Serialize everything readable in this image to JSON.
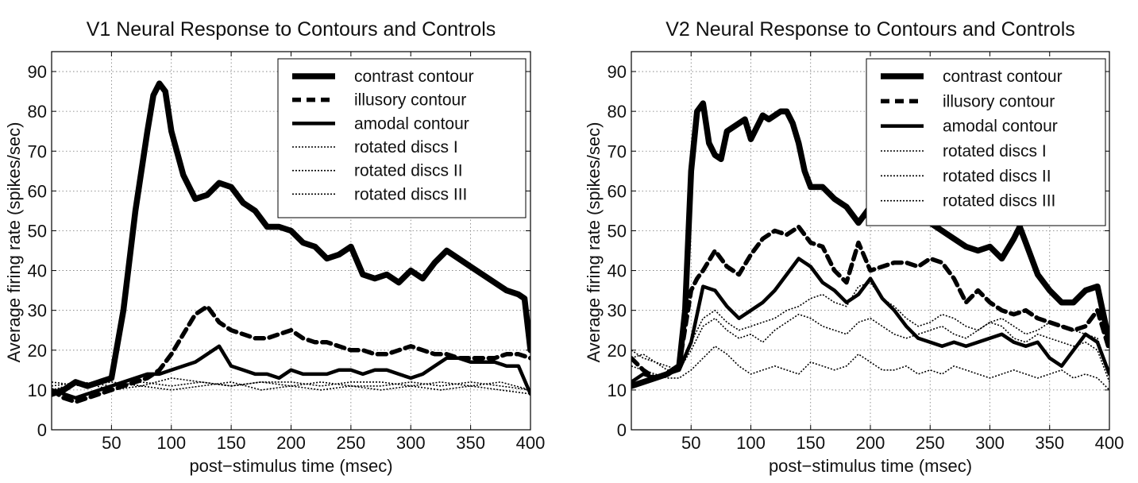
{
  "chart_data": [
    {
      "type": "line",
      "title": "V1 Neural Response to Contours and Controls",
      "xlabel": "post−stimulus time (msec)",
      "ylabel": "Average firing rate (spikes/sec)",
      "xlim": [
        0,
        400
      ],
      "ylim": [
        0,
        95
      ],
      "xticks": [
        50,
        100,
        150,
        200,
        250,
        300,
        350,
        400
      ],
      "yticks": [
        0,
        10,
        20,
        30,
        40,
        50,
        60,
        70,
        80,
        90
      ],
      "grid": true,
      "legend_position": "top-right",
      "series": [
        {
          "name": "contrast contour",
          "style": "thick-solid",
          "x": [
            0,
            10,
            20,
            30,
            40,
            50,
            60,
            70,
            80,
            85,
            90,
            95,
            100,
            110,
            120,
            130,
            140,
            150,
            160,
            170,
            180,
            190,
            200,
            210,
            220,
            230,
            240,
            250,
            260,
            270,
            280,
            290,
            300,
            310,
            320,
            330,
            340,
            350,
            360,
            370,
            380,
            390,
            395,
            400
          ],
          "y": [
            9,
            10,
            12,
            11,
            12,
            13,
            30,
            55,
            75,
            84,
            87,
            85,
            75,
            64,
            58,
            59,
            62,
            61,
            57,
            55,
            51,
            51,
            50,
            47,
            46,
            43,
            44,
            46,
            39,
            38,
            39,
            37,
            40,
            38,
            42,
            45,
            43,
            41,
            39,
            37,
            35,
            34,
            33,
            20
          ]
        },
        {
          "name": "illusory contour",
          "style": "thick-dash",
          "x": [
            0,
            10,
            20,
            30,
            40,
            50,
            60,
            70,
            80,
            90,
            100,
            110,
            120,
            130,
            140,
            150,
            160,
            170,
            180,
            190,
            200,
            210,
            220,
            230,
            240,
            250,
            260,
            270,
            280,
            290,
            300,
            310,
            320,
            330,
            340,
            350,
            360,
            370,
            380,
            390,
            400
          ],
          "y": [
            10,
            8,
            7,
            8,
            9,
            10,
            11,
            12,
            13,
            15,
            19,
            24,
            29,
            31,
            27,
            25,
            24,
            23,
            23,
            24,
            25,
            23,
            22,
            22,
            21,
            20,
            20,
            19,
            19,
            20,
            21,
            20,
            19,
            19,
            18,
            18,
            18,
            18,
            19,
            19,
            18
          ]
        },
        {
          "name": "amodal contour",
          "style": "medium-solid",
          "x": [
            0,
            10,
            20,
            30,
            40,
            50,
            60,
            70,
            80,
            90,
            100,
            110,
            120,
            130,
            140,
            150,
            160,
            170,
            180,
            190,
            200,
            210,
            220,
            230,
            240,
            250,
            260,
            270,
            280,
            290,
            300,
            310,
            320,
            330,
            340,
            350,
            360,
            370,
            380,
            390,
            400
          ],
          "y": [
            10,
            9,
            8,
            9,
            10,
            11,
            12,
            13,
            14,
            14,
            15,
            16,
            17,
            19,
            21,
            16,
            15,
            14,
            14,
            13,
            15,
            14,
            14,
            14,
            15,
            15,
            14,
            15,
            15,
            14,
            13,
            14,
            16,
            18,
            18,
            17,
            17,
            17,
            16,
            16,
            9
          ]
        },
        {
          "name": "rotated discs I",
          "style": "dotted",
          "x": [
            0,
            25,
            50,
            75,
            100,
            125,
            150,
            175,
            200,
            225,
            250,
            275,
            300,
            325,
            350,
            375,
            400
          ],
          "y": [
            11,
            12,
            11,
            12,
            11,
            12,
            11,
            12,
            11,
            12,
            11,
            11,
            12,
            11,
            12,
            11,
            10
          ]
        },
        {
          "name": "rotated discs II",
          "style": "dotted",
          "x": [
            0,
            25,
            50,
            75,
            100,
            125,
            150,
            175,
            200,
            225,
            250,
            275,
            300,
            325,
            350,
            375,
            400
          ],
          "y": [
            12,
            11,
            12,
            11,
            13,
            12,
            11,
            12,
            12,
            11,
            12,
            12,
            11,
            12,
            11,
            12,
            10
          ]
        },
        {
          "name": "rotated discs III",
          "style": "dotted",
          "x": [
            0,
            25,
            50,
            75,
            100,
            125,
            150,
            175,
            200,
            225,
            250,
            275,
            300,
            325,
            350,
            375,
            400
          ],
          "y": [
            10,
            12,
            10,
            11,
            10,
            11,
            12,
            10,
            11,
            10,
            11,
            10,
            11,
            10,
            11,
            10,
            9
          ]
        }
      ]
    },
    {
      "type": "line",
      "title": "V2 Neural Response to Contours and Controls",
      "xlabel": "post−stimulus time (msec)",
      "ylabel": "Average firing rate (spikes/sec)",
      "xlim": [
        0,
        400
      ],
      "ylim": [
        0,
        95
      ],
      "xticks": [
        50,
        100,
        150,
        200,
        250,
        300,
        350,
        400
      ],
      "yticks": [
        0,
        10,
        20,
        30,
        40,
        50,
        60,
        70,
        80,
        90
      ],
      "grid": true,
      "legend_position": "top-right",
      "series": [
        {
          "name": "contrast contour",
          "style": "thick-solid",
          "x": [
            0,
            10,
            20,
            30,
            40,
            45,
            50,
            55,
            60,
            65,
            70,
            75,
            80,
            90,
            95,
            100,
            105,
            110,
            115,
            120,
            125,
            130,
            135,
            140,
            145,
            150,
            160,
            170,
            180,
            190,
            200,
            210,
            220,
            230,
            240,
            250,
            260,
            270,
            280,
            290,
            300,
            310,
            320,
            325,
            330,
            340,
            350,
            360,
            370,
            380,
            390,
            400
          ],
          "y": [
            11,
            12,
            13,
            14,
            16,
            30,
            65,
            80,
            82,
            72,
            69,
            68,
            75,
            77,
            78,
            73,
            76,
            79,
            78,
            79,
            80,
            80,
            77,
            72,
            65,
            61,
            61,
            58,
            56,
            52,
            56,
            58,
            57,
            56,
            55,
            52,
            50,
            48,
            46,
            45,
            46,
            43,
            48,
            51,
            47,
            39,
            35,
            32,
            32,
            35,
            36,
            22
          ]
        },
        {
          "name": "illusory contour",
          "style": "thick-dash",
          "x": [
            0,
            10,
            20,
            30,
            40,
            50,
            55,
            60,
            70,
            80,
            90,
            100,
            110,
            120,
            130,
            140,
            150,
            160,
            170,
            180,
            190,
            200,
            210,
            220,
            230,
            240,
            250,
            260,
            270,
            280,
            290,
            300,
            310,
            320,
            330,
            340,
            350,
            360,
            370,
            380,
            390,
            400
          ],
          "y": [
            18,
            15,
            13,
            14,
            16,
            35,
            38,
            40,
            45,
            41,
            39,
            44,
            48,
            50,
            49,
            51,
            47,
            46,
            40,
            37,
            47,
            40,
            41,
            42,
            42,
            41,
            43,
            42,
            38,
            32,
            35,
            32,
            30,
            29,
            30,
            28,
            27,
            26,
            25,
            26,
            30,
            20
          ]
        },
        {
          "name": "amodal contour",
          "style": "medium-solid",
          "x": [
            0,
            10,
            20,
            30,
            40,
            50,
            60,
            70,
            80,
            90,
            100,
            110,
            120,
            130,
            140,
            150,
            160,
            170,
            180,
            190,
            200,
            210,
            220,
            230,
            240,
            250,
            260,
            270,
            280,
            290,
            300,
            310,
            320,
            330,
            340,
            350,
            360,
            370,
            380,
            390,
            400
          ],
          "y": [
            12,
            14,
            13,
            14,
            15,
            22,
            36,
            35,
            31,
            28,
            30,
            32,
            35,
            39,
            43,
            41,
            37,
            35,
            32,
            34,
            38,
            33,
            30,
            26,
            23,
            22,
            21,
            22,
            21,
            22,
            23,
            24,
            22,
            21,
            22,
            18,
            16,
            20,
            24,
            22,
            14
          ]
        },
        {
          "name": "rotated discs I",
          "style": "dotted",
          "x": [
            0,
            10,
            20,
            30,
            40,
            50,
            60,
            70,
            80,
            90,
            100,
            110,
            120,
            130,
            140,
            150,
            160,
            170,
            180,
            190,
            200,
            210,
            220,
            230,
            240,
            250,
            260,
            270,
            280,
            290,
            300,
            310,
            320,
            330,
            340,
            350,
            360,
            370,
            380,
            390,
            400
          ],
          "y": [
            20,
            18,
            17,
            15,
            15,
            22,
            28,
            30,
            27,
            25,
            26,
            27,
            28,
            30,
            31,
            33,
            34,
            32,
            31,
            36,
            37,
            33,
            31,
            28,
            26,
            27,
            29,
            28,
            26,
            25,
            27,
            28,
            26,
            24,
            25,
            27,
            26,
            25,
            24,
            23,
            14
          ]
        },
        {
          "name": "rotated discs II",
          "style": "dotted",
          "x": [
            0,
            10,
            20,
            30,
            40,
            50,
            60,
            70,
            80,
            90,
            100,
            110,
            120,
            130,
            140,
            150,
            160,
            170,
            180,
            190,
            200,
            210,
            220,
            230,
            240,
            250,
            260,
            270,
            280,
            290,
            300,
            310,
            320,
            330,
            340,
            350,
            360,
            370,
            380,
            390,
            400
          ],
          "y": [
            18,
            19,
            17,
            16,
            15,
            20,
            26,
            28,
            25,
            23,
            24,
            22,
            25,
            27,
            29,
            28,
            26,
            25,
            24,
            27,
            28,
            26,
            24,
            23,
            24,
            25,
            26,
            24,
            23,
            25,
            27,
            26,
            23,
            22,
            24,
            23,
            22,
            21,
            22,
            20,
            12
          ]
        },
        {
          "name": "rotated discs III",
          "style": "dotted",
          "x": [
            0,
            10,
            20,
            30,
            40,
            50,
            60,
            70,
            80,
            90,
            100,
            110,
            120,
            130,
            140,
            150,
            160,
            170,
            180,
            190,
            200,
            210,
            220,
            230,
            240,
            250,
            260,
            270,
            280,
            290,
            300,
            310,
            320,
            330,
            340,
            350,
            360,
            370,
            380,
            390,
            400
          ],
          "y": [
            16,
            15,
            14,
            13,
            13,
            15,
            18,
            21,
            19,
            16,
            14,
            15,
            16,
            15,
            14,
            17,
            16,
            15,
            16,
            19,
            17,
            15,
            15,
            16,
            14,
            15,
            14,
            16,
            15,
            14,
            13,
            14,
            15,
            14,
            13,
            14,
            15,
            13,
            14,
            13,
            10
          ]
        }
      ]
    }
  ]
}
